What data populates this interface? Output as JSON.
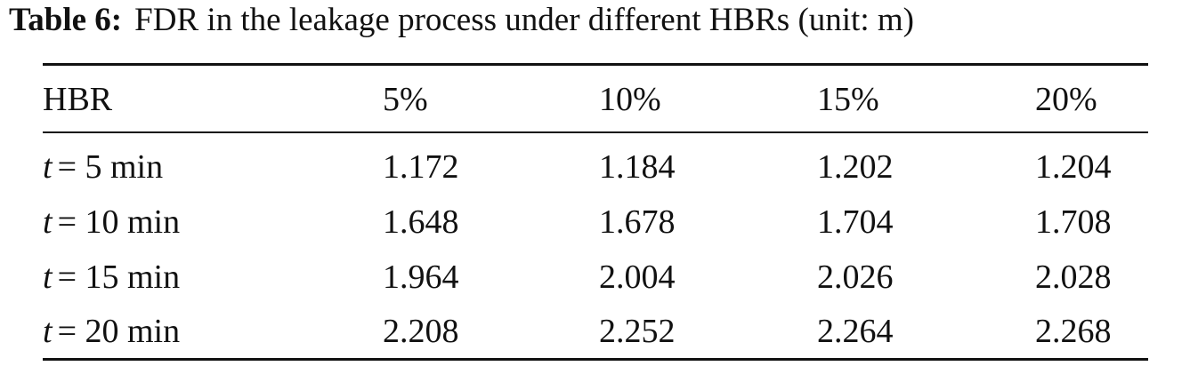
{
  "caption": {
    "label": "Table 6:",
    "text": "FDR in the leakage process under different HBRs (unit: m)"
  },
  "table": {
    "header": [
      "HBR",
      "5%",
      "10%",
      "15%",
      "20%"
    ],
    "rows": [
      {
        "label": {
          "var": "t",
          "rest": "= 5 min"
        },
        "cells": [
          "1.172",
          "1.184",
          "1.202",
          "1.204"
        ]
      },
      {
        "label": {
          "var": "t",
          "rest": "= 10 min"
        },
        "cells": [
          "1.648",
          "1.678",
          "1.704",
          "1.708"
        ]
      },
      {
        "label": {
          "var": "t",
          "rest": "= 15 min"
        },
        "cells": [
          "1.964",
          "2.004",
          "2.026",
          "2.028"
        ]
      },
      {
        "label": {
          "var": "t",
          "rest": "= 20 min"
        },
        "cells": [
          "2.208",
          "2.252",
          "2.264",
          "2.268"
        ]
      }
    ]
  }
}
